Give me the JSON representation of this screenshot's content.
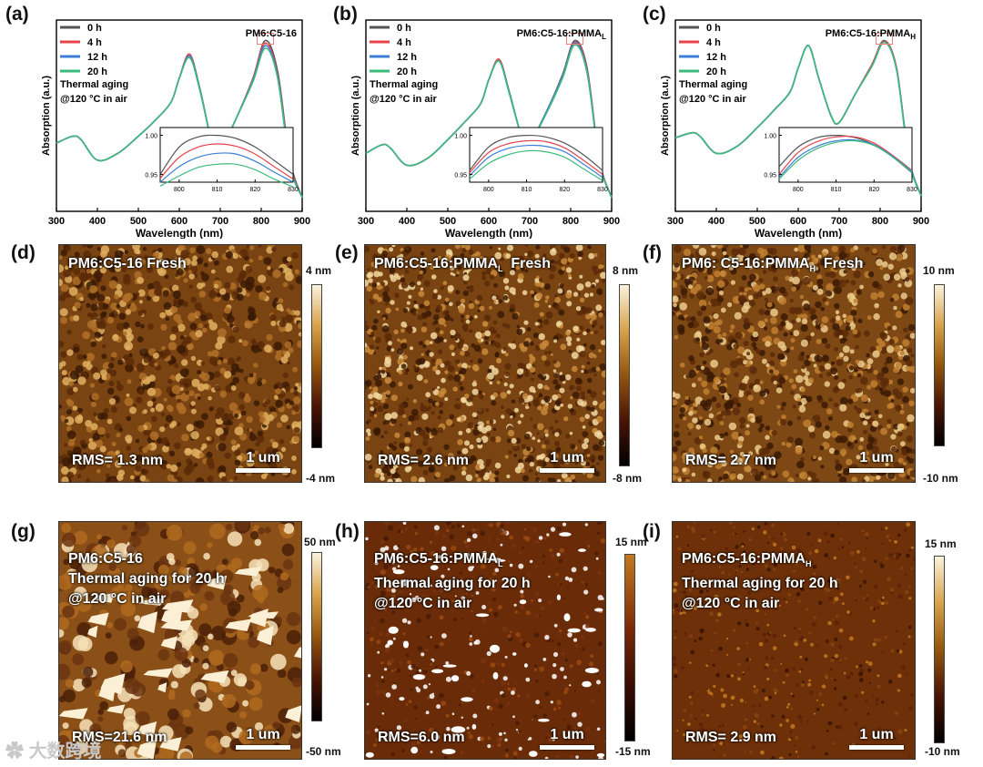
{
  "panels": {
    "a": {
      "label": "(a)",
      "title": "PM6:C5-16",
      "sub": ""
    },
    "b": {
      "label": "(b)",
      "title": "PM6:C5-16:PMMA",
      "sub": "L"
    },
    "c": {
      "label": "(c)",
      "title": "PM6:C5-16:PMMA",
      "sub": "H"
    }
  },
  "common": {
    "legend": [
      "0 h",
      "4 h",
      "12 h",
      "20 h"
    ],
    "condition_line1": "Thermal aging",
    "condition_line2": "@120 °C in air",
    "xlabel": "Wavelength (nm)",
    "ylabel": "Absorption (a.u.)",
    "xticks": [
      "300",
      "400",
      "500",
      "600",
      "700",
      "800",
      "900"
    ],
    "inset_xticks": [
      "800",
      "810",
      "820",
      "830"
    ],
    "inset_yticks": [
      "1.00",
      "0.95"
    ]
  },
  "colors": {
    "series": [
      "#555555",
      "#e8434b",
      "#3d7fd6",
      "#3dbb7c"
    ],
    "highlight": "#f08080"
  },
  "chart_data": [
    {
      "type": "line",
      "title": "PM6:C5-16",
      "xlabel": "Wavelength (nm)",
      "ylabel": "Absorption (a.u.)",
      "xlim": [
        300,
        900
      ],
      "x": [
        300,
        340,
        360,
        400,
        450,
        500,
        540,
        580,
        600,
        625,
        650,
        680,
        700,
        740,
        780,
        810,
        840,
        870,
        900
      ],
      "series": [
        {
          "name": "0 h",
          "values": [
            0.4,
            0.44,
            0.42,
            0.3,
            0.34,
            0.44,
            0.53,
            0.64,
            0.78,
            0.92,
            0.72,
            0.4,
            0.36,
            0.55,
            0.78,
            1.0,
            0.82,
            0.3,
            0.08
          ]
        },
        {
          "name": "4 h",
          "values": [
            0.4,
            0.44,
            0.42,
            0.3,
            0.34,
            0.44,
            0.53,
            0.64,
            0.78,
            0.92,
            0.72,
            0.4,
            0.36,
            0.55,
            0.78,
            0.985,
            0.8,
            0.29,
            0.08
          ]
        },
        {
          "name": "12 h",
          "values": [
            0.4,
            0.44,
            0.42,
            0.3,
            0.34,
            0.44,
            0.53,
            0.64,
            0.78,
            0.91,
            0.72,
            0.4,
            0.36,
            0.55,
            0.77,
            0.97,
            0.79,
            0.28,
            0.08
          ]
        },
        {
          "name": "20 h",
          "values": [
            0.4,
            0.44,
            0.42,
            0.3,
            0.34,
            0.44,
            0.53,
            0.64,
            0.78,
            0.9,
            0.71,
            0.4,
            0.36,
            0.55,
            0.76,
            0.955,
            0.78,
            0.27,
            0.08
          ]
        }
      ],
      "inset": {
        "xlim": [
          795,
          830
        ],
        "ylim": [
          0.94,
          1.01
        ],
        "x": [
          795,
          800,
          805,
          810,
          815,
          820,
          825,
          830
        ],
        "series": [
          {
            "name": "0 h",
            "values": [
              0.95,
              0.985,
              0.998,
              1.0,
              0.996,
              0.985,
              0.968,
              0.95
            ]
          },
          {
            "name": "4 h",
            "values": [
              0.945,
              0.972,
              0.985,
              0.989,
              0.986,
              0.976,
              0.96,
              0.944
            ]
          },
          {
            "name": "12 h",
            "values": [
              0.94,
              0.96,
              0.972,
              0.977,
              0.976,
              0.967,
              0.953,
              0.94
            ]
          },
          {
            "name": "20 h",
            "values": [
              0.935,
              0.948,
              0.959,
              0.963,
              0.963,
              0.956,
              0.944,
              0.934
            ]
          }
        ]
      }
    },
    {
      "type": "line",
      "title": "PM6:C5-16:PMMA_L",
      "xlabel": "Wavelength (nm)",
      "ylabel": "Absorption (a.u.)",
      "xlim": [
        300,
        900
      ],
      "x": [
        300,
        340,
        360,
        400,
        450,
        500,
        540,
        580,
        600,
        625,
        650,
        680,
        700,
        740,
        780,
        810,
        840,
        870,
        900
      ],
      "series": [
        {
          "name": "0 h",
          "values": [
            0.34,
            0.39,
            0.37,
            0.27,
            0.31,
            0.42,
            0.52,
            0.63,
            0.77,
            0.89,
            0.7,
            0.44,
            0.4,
            0.58,
            0.8,
            1.0,
            0.84,
            0.3,
            0.08
          ]
        },
        {
          "name": "4 h",
          "values": [
            0.34,
            0.39,
            0.37,
            0.27,
            0.31,
            0.42,
            0.52,
            0.63,
            0.77,
            0.89,
            0.7,
            0.44,
            0.4,
            0.58,
            0.79,
            0.99,
            0.83,
            0.3,
            0.08
          ]
        },
        {
          "name": "12 h",
          "values": [
            0.34,
            0.39,
            0.37,
            0.27,
            0.31,
            0.42,
            0.52,
            0.63,
            0.77,
            0.88,
            0.7,
            0.44,
            0.4,
            0.58,
            0.79,
            0.985,
            0.82,
            0.29,
            0.08
          ]
        },
        {
          "name": "20 h",
          "values": [
            0.34,
            0.39,
            0.37,
            0.27,
            0.31,
            0.42,
            0.52,
            0.63,
            0.77,
            0.88,
            0.69,
            0.44,
            0.4,
            0.57,
            0.78,
            0.975,
            0.81,
            0.29,
            0.08
          ]
        }
      ],
      "inset": {
        "xlim": [
          795,
          830
        ],
        "ylim": [
          0.94,
          1.01
        ],
        "x": [
          795,
          800,
          805,
          810,
          815,
          820,
          825,
          830
        ],
        "series": [
          {
            "name": "0 h",
            "values": [
              0.955,
              0.985,
              0.997,
              1.0,
              0.998,
              0.99,
              0.975,
              0.955
            ]
          },
          {
            "name": "4 h",
            "values": [
              0.952,
              0.978,
              0.989,
              0.993,
              0.992,
              0.984,
              0.968,
              0.95
            ]
          },
          {
            "name": "12 h",
            "values": [
              0.948,
              0.972,
              0.983,
              0.987,
              0.986,
              0.979,
              0.963,
              0.946
            ]
          },
          {
            "name": "20 h",
            "values": [
              0.944,
              0.964,
              0.975,
              0.98,
              0.979,
              0.972,
              0.957,
              0.942
            ]
          }
        ]
      }
    },
    {
      "type": "line",
      "title": "PM6:C5-16:PMMA_H",
      "xlabel": "Wavelength (nm)",
      "ylabel": "Absorption (a.u.)",
      "xlim": [
        300,
        900
      ],
      "x": [
        300,
        340,
        360,
        400,
        450,
        500,
        540,
        580,
        600,
        625,
        650,
        680,
        700,
        740,
        780,
        810,
        840,
        870,
        900
      ],
      "series": [
        {
          "name": "0 h",
          "values": [
            0.43,
            0.46,
            0.44,
            0.34,
            0.38,
            0.49,
            0.59,
            0.7,
            0.84,
            0.97,
            0.78,
            0.56,
            0.52,
            0.69,
            0.86,
            1.0,
            0.84,
            0.31,
            0.09
          ]
        },
        {
          "name": "4 h",
          "values": [
            0.43,
            0.46,
            0.44,
            0.34,
            0.38,
            0.49,
            0.59,
            0.7,
            0.84,
            0.97,
            0.78,
            0.56,
            0.52,
            0.69,
            0.86,
            0.995,
            0.84,
            0.31,
            0.09
          ]
        },
        {
          "name": "12 h",
          "values": [
            0.43,
            0.46,
            0.44,
            0.34,
            0.38,
            0.49,
            0.59,
            0.7,
            0.84,
            0.97,
            0.78,
            0.56,
            0.52,
            0.69,
            0.85,
            0.99,
            0.83,
            0.31,
            0.09
          ]
        },
        {
          "name": "20 h",
          "values": [
            0.43,
            0.46,
            0.44,
            0.34,
            0.38,
            0.49,
            0.59,
            0.7,
            0.84,
            0.97,
            0.78,
            0.56,
            0.52,
            0.69,
            0.85,
            0.99,
            0.83,
            0.3,
            0.09
          ]
        }
      ],
      "inset": {
        "xlim": [
          795,
          830
        ],
        "ylim": [
          0.94,
          1.01
        ],
        "x": [
          795,
          800,
          805,
          810,
          815,
          820,
          825,
          830
        ],
        "series": [
          {
            "name": "0 h",
            "values": [
              0.96,
              0.985,
              0.997,
              1.0,
              0.997,
              0.988,
              0.972,
              0.952
            ]
          },
          {
            "name": "4 h",
            "values": [
              0.95,
              0.978,
              0.992,
              0.998,
              0.998,
              0.99,
              0.974,
              0.955
            ]
          },
          {
            "name": "12 h",
            "values": [
              0.946,
              0.972,
              0.986,
              0.993,
              0.994,
              0.988,
              0.973,
              0.954
            ]
          },
          {
            "name": "20 h",
            "values": [
              0.944,
              0.968,
              0.983,
              0.991,
              0.993,
              0.987,
              0.972,
              0.953
            ]
          }
        ]
      }
    }
  ],
  "afm": [
    {
      "label": "(d)",
      "title": "PM6:C5-16  Fresh",
      "rms": "RMS= 1.3 nm",
      "scale": "1 um",
      "cmax": "4 nm",
      "cmin": "-4 nm"
    },
    {
      "label": "(e)",
      "title": "PM6:C5-16:PMMA",
      "sub": "L",
      "title_suffix": "  Fresh",
      "rms": "RMS= 2.6 nm",
      "scale": "1 um",
      "cmax": "8 nm",
      "cmin": "-8 nm"
    },
    {
      "label": "(f)",
      "title": "PM6: C5-16:PMMA",
      "sub": "H",
      "title_suffix": "  Fresh",
      "rms": "RMS= 2.7 nm",
      "scale": "1 um",
      "cmax": "10 nm",
      "cmin": "-10 nm"
    },
    {
      "label": "(g)",
      "title": "PM6:C5-16",
      "line2": "Thermal aging for 20 h",
      "line3": "@120 °C in air",
      "rms": "RMS=21.6 nm",
      "scale": "1 um",
      "cmax": "50 nm",
      "cmin": "-50 nm"
    },
    {
      "label": "(h)",
      "title": "PM6:C5-16:PMMA",
      "sub": "L",
      "line2": "Thermal aging for 20 h",
      "line3": "@120 °C in air",
      "rms": "RMS=6.0 nm",
      "scale": "1 um",
      "cmax": "15 nm",
      "cmin": "-15 nm"
    },
    {
      "label": "(i)",
      "title": "PM6:C5-16:PMMA",
      "sub": "H",
      "line2": "Thermal aging for 20 h",
      "line3": "@120 °C in air",
      "rms": "RMS= 2.9 nm",
      "scale": "1 um",
      "cmax": "15 nm",
      "cmin": "-10 nm"
    }
  ],
  "watermark": "大数跨境"
}
